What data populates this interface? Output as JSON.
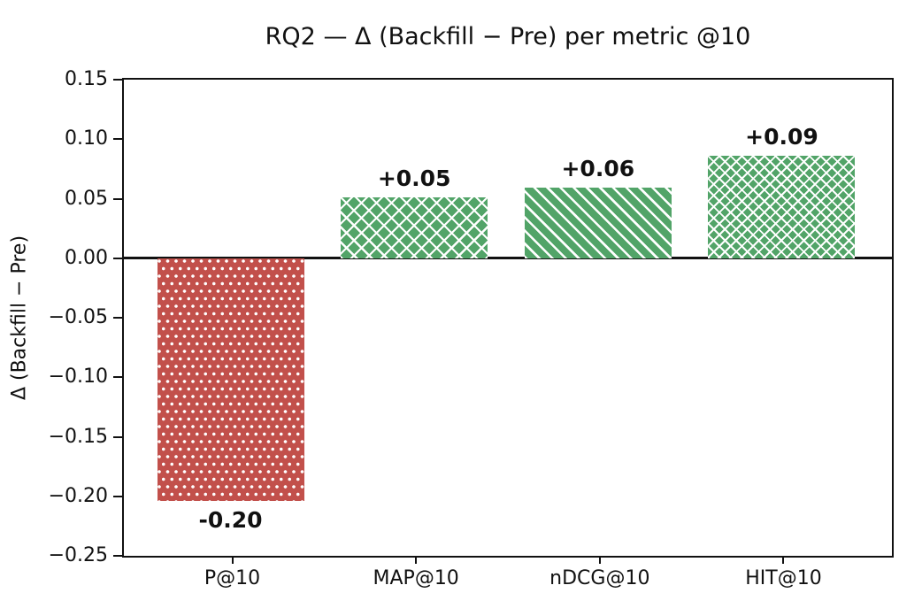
{
  "chart_data": {
    "type": "bar",
    "title": "RQ2 — Δ (Backfill − Pre) per metric @10",
    "xlabel": "",
    "ylabel": "Δ (Backfill − Pre)",
    "categories": [
      "P@10",
      "MAP@10",
      "nDCG@10",
      "HIT@10"
    ],
    "values": [
      -0.204,
      0.051,
      0.059,
      0.086
    ],
    "bar_labels": [
      "-0.20",
      "+0.05",
      "+0.06",
      "+0.09"
    ],
    "bar_colors": [
      "#c2504b",
      "#52a468",
      "#52a468",
      "#52a468"
    ],
    "bar_hatches": [
      "dots",
      "crosshatch",
      "diagonal",
      "crosshatch-dense"
    ],
    "hatch_color": "#ffffff",
    "ylim": [
      -0.25,
      0.15
    ],
    "yticks": [
      0.15,
      0.1,
      0.05,
      0.0,
      -0.05,
      -0.1,
      -0.15,
      -0.2,
      -0.25
    ],
    "ytick_labels": [
      "0.15",
      "0.10",
      "0.05",
      "0.00",
      "−0.05",
      "−0.10",
      "−0.15",
      "−0.20",
      "−0.25"
    ],
    "grid": false,
    "legend": "none",
    "zero_line": true,
    "axis_color": "#111111",
    "negative_color": "#c2504b",
    "positive_color": "#52a468"
  }
}
